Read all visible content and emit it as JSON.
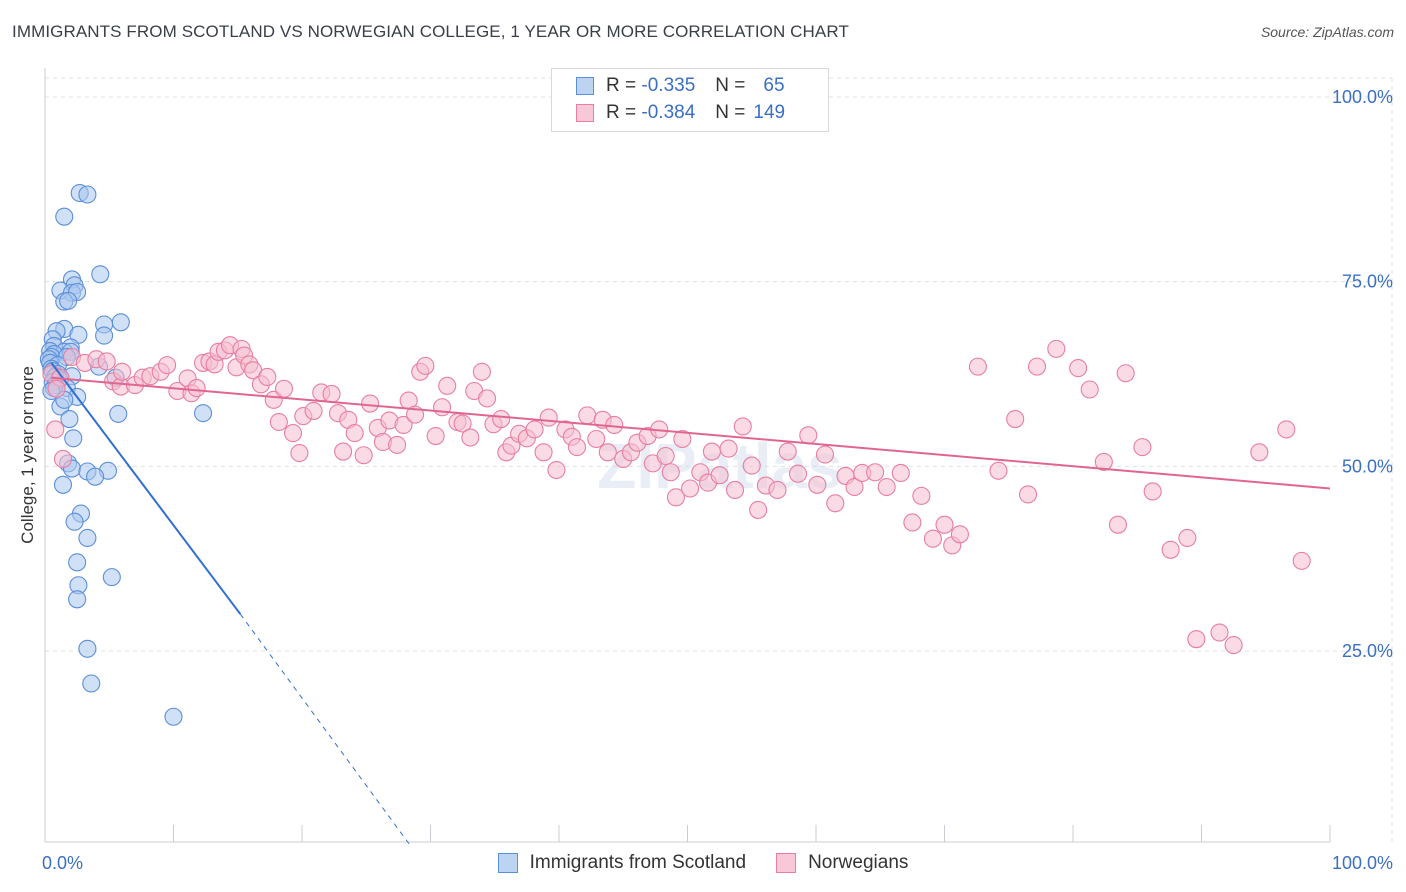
{
  "header": {
    "title": "IMMIGRANTS FROM SCOTLAND VS NORWEGIAN COLLEGE, 1 YEAR OR MORE CORRELATION CHART",
    "source": "Source: ZipAtlas.com"
  },
  "watermark": "ZIPatlas",
  "colors": {
    "blue": "#5b8fd9",
    "blue_fill": "#a9c6ee",
    "blue_line": "#2f6fd0",
    "pink": "#e87ea1",
    "pink_fill": "#f6bed0",
    "pink_line": "#e06690",
    "tick_text": "#3a6fc4",
    "grid": "#dde0e6"
  },
  "legend": {
    "r_label": "R =",
    "n_label": "N =",
    "series1": {
      "r": "-0.335",
      "n": "65"
    },
    "series2": {
      "r": "-0.384",
      "n": "149"
    }
  },
  "chart_data": {
    "type": "scatter",
    "title": "IMMIGRANTS FROM SCOTLAND VS NORWEGIAN COLLEGE, 1 YEAR OR MORE CORRELATION CHART",
    "xlabel": "",
    "ylabel": "College, 1 year or more",
    "xlim": [
      0,
      100
    ],
    "ylim": [
      0,
      105
    ],
    "x_tick_labels": [
      "0.0%",
      "100.0%"
    ],
    "y_tick_labels": [
      "25.0%",
      "50.0%",
      "75.0%",
      "100.0%"
    ],
    "y_ticks": [
      25,
      50,
      75,
      100
    ],
    "series": [
      {
        "name": "Immigrants from Scotland",
        "color": "#5b8fd9",
        "trend": {
          "x0": 0.5,
          "y0": 64,
          "x1": 15.2,
          "y1": 30.0,
          "dash_to_x": 28.5,
          "dash_to_y": -1.5
        },
        "points": [
          [
            2.7,
            87.0
          ],
          [
            3.3,
            86.8
          ],
          [
            1.5,
            83.8
          ],
          [
            4.3,
            76.0
          ],
          [
            2.1,
            75.3
          ],
          [
            2.3,
            74.5
          ],
          [
            1.2,
            73.8
          ],
          [
            2.1,
            73.5
          ],
          [
            2.5,
            73.6
          ],
          [
            1.5,
            72.3
          ],
          [
            1.8,
            72.4
          ],
          [
            5.9,
            69.5
          ],
          [
            4.6,
            69.2
          ],
          [
            1.5,
            68.6
          ],
          [
            0.9,
            68.3
          ],
          [
            2.6,
            67.8
          ],
          [
            4.6,
            67.7
          ],
          [
            0.6,
            67.2
          ],
          [
            0.7,
            66.3
          ],
          [
            2.0,
            66.1
          ],
          [
            0.4,
            65.6
          ],
          [
            1.5,
            65.5
          ],
          [
            2.0,
            65.5
          ],
          [
            0.7,
            65.2
          ],
          [
            0.5,
            64.8
          ],
          [
            0.3,
            64.5
          ],
          [
            1.7,
            64.8
          ],
          [
            0.4,
            64.0
          ],
          [
            1.0,
            63.7
          ],
          [
            4.2,
            63.5
          ],
          [
            0.5,
            63.2
          ],
          [
            0.6,
            62.9
          ],
          [
            1.0,
            62.5
          ],
          [
            0.8,
            62.1
          ],
          [
            2.1,
            62.2
          ],
          [
            5.5,
            62.0
          ],
          [
            1.1,
            61.8
          ],
          [
            0.6,
            61.4
          ],
          [
            0.8,
            61.0
          ],
          [
            1.7,
            60.6
          ],
          [
            0.7,
            60.6
          ],
          [
            0.5,
            60.2
          ],
          [
            2.5,
            59.4
          ],
          [
            1.2,
            58.1
          ],
          [
            5.7,
            57.1
          ],
          [
            12.3,
            57.2
          ],
          [
            1.9,
            56.4
          ],
          [
            2.2,
            53.8
          ],
          [
            1.8,
            50.4
          ],
          [
            2.1,
            49.7
          ],
          [
            3.3,
            49.3
          ],
          [
            4.9,
            49.4
          ],
          [
            3.9,
            48.6
          ],
          [
            1.4,
            47.5
          ],
          [
            2.8,
            43.6
          ],
          [
            2.3,
            42.5
          ],
          [
            3.3,
            40.3
          ],
          [
            2.5,
            37.0
          ],
          [
            5.2,
            35.0
          ],
          [
            2.6,
            33.9
          ],
          [
            2.5,
            32.0
          ],
          [
            3.3,
            25.3
          ],
          [
            3.6,
            20.6
          ],
          [
            10.0,
            16.1
          ],
          [
            1.5,
            59.0
          ]
        ]
      },
      {
        "name": "Norwegians",
        "color": "#e87ea1",
        "trend": {
          "x0": 0.5,
          "y0": 62.0,
          "x1": 100,
          "y1": 47.0
        },
        "points": [
          [
            0.8,
            55.0
          ],
          [
            1.4,
            51.0
          ],
          [
            0.5,
            62.5
          ],
          [
            1.2,
            62.0
          ],
          [
            0.9,
            60.5
          ],
          [
            2.1,
            64.8
          ],
          [
            3.1,
            64.0
          ],
          [
            4.0,
            64.5
          ],
          [
            4.8,
            64.2
          ],
          [
            5.3,
            61.5
          ],
          [
            5.9,
            60.8
          ],
          [
            6.0,
            62.8
          ],
          [
            7.0,
            61.0
          ],
          [
            7.6,
            62.0
          ],
          [
            8.2,
            62.2
          ],
          [
            9.0,
            62.8
          ],
          [
            9.5,
            63.7
          ],
          [
            10.3,
            60.2
          ],
          [
            11.1,
            61.9
          ],
          [
            11.4,
            59.9
          ],
          [
            11.8,
            60.6
          ],
          [
            12.3,
            64.0
          ],
          [
            12.8,
            64.2
          ],
          [
            13.2,
            63.8
          ],
          [
            13.5,
            65.5
          ],
          [
            14.0,
            65.7
          ],
          [
            14.4,
            66.4
          ],
          [
            14.9,
            63.4
          ],
          [
            15.3,
            65.9
          ],
          [
            15.5,
            65.0
          ],
          [
            15.9,
            63.8
          ],
          [
            16.2,
            63.0
          ],
          [
            16.8,
            61.1
          ],
          [
            17.3,
            62.1
          ],
          [
            17.8,
            59.0
          ],
          [
            18.2,
            56.0
          ],
          [
            18.6,
            60.5
          ],
          [
            19.3,
            54.5
          ],
          [
            19.8,
            51.8
          ],
          [
            20.1,
            56.8
          ],
          [
            20.9,
            57.5
          ],
          [
            21.5,
            60.0
          ],
          [
            22.3,
            59.8
          ],
          [
            22.8,
            57.2
          ],
          [
            23.2,
            52.0
          ],
          [
            23.6,
            56.3
          ],
          [
            24.1,
            54.5
          ],
          [
            24.8,
            51.5
          ],
          [
            25.3,
            58.5
          ],
          [
            25.9,
            55.2
          ],
          [
            26.3,
            53.3
          ],
          [
            26.8,
            56.2
          ],
          [
            27.4,
            52.9
          ],
          [
            27.9,
            55.6
          ],
          [
            28.3,
            58.9
          ],
          [
            28.8,
            57.0
          ],
          [
            29.2,
            62.8
          ],
          [
            29.6,
            63.6
          ],
          [
            30.4,
            54.1
          ],
          [
            30.9,
            58.0
          ],
          [
            31.3,
            60.9
          ],
          [
            32.1,
            56.0
          ],
          [
            32.5,
            55.8
          ],
          [
            33.1,
            53.9
          ],
          [
            33.4,
            60.2
          ],
          [
            34.0,
            62.8
          ],
          [
            34.4,
            59.2
          ],
          [
            34.9,
            55.7
          ],
          [
            35.5,
            56.4
          ],
          [
            35.9,
            51.9
          ],
          [
            36.3,
            52.8
          ],
          [
            36.9,
            54.4
          ],
          [
            37.5,
            53.8
          ],
          [
            38.1,
            55.0
          ],
          [
            38.8,
            51.9
          ],
          [
            39.2,
            56.6
          ],
          [
            39.8,
            49.5
          ],
          [
            40.5,
            55.0
          ],
          [
            41.0,
            54.0
          ],
          [
            41.4,
            52.6
          ],
          [
            42.2,
            56.9
          ],
          [
            42.9,
            53.7
          ],
          [
            43.4,
            56.3
          ],
          [
            43.8,
            51.9
          ],
          [
            44.3,
            55.6
          ],
          [
            45.0,
            51.0
          ],
          [
            45.6,
            51.9
          ],
          [
            46.1,
            53.2
          ],
          [
            46.9,
            54.1
          ],
          [
            47.3,
            50.4
          ],
          [
            47.8,
            55.0
          ],
          [
            48.3,
            51.4
          ],
          [
            48.7,
            49.2
          ],
          [
            49.1,
            45.8
          ],
          [
            49.6,
            53.7
          ],
          [
            50.2,
            47.0
          ],
          [
            51.0,
            49.2
          ],
          [
            51.6,
            47.8
          ],
          [
            51.9,
            52.0
          ],
          [
            52.5,
            48.8
          ],
          [
            53.2,
            52.4
          ],
          [
            53.7,
            46.8
          ],
          [
            54.3,
            55.4
          ],
          [
            55.0,
            50.1
          ],
          [
            55.5,
            44.1
          ],
          [
            56.1,
            47.4
          ],
          [
            57.0,
            46.8
          ],
          [
            57.8,
            52.0
          ],
          [
            58.6,
            49.0
          ],
          [
            59.4,
            54.2
          ],
          [
            60.1,
            47.5
          ],
          [
            60.7,
            51.6
          ],
          [
            61.5,
            45.0
          ],
          [
            62.3,
            48.7
          ],
          [
            63.0,
            47.2
          ],
          [
            63.6,
            49.1
          ],
          [
            64.6,
            49.2
          ],
          [
            65.5,
            47.2
          ],
          [
            66.6,
            49.1
          ],
          [
            67.5,
            42.4
          ],
          [
            68.2,
            46.0
          ],
          [
            69.1,
            40.2
          ],
          [
            70.0,
            42.1
          ],
          [
            70.6,
            39.3
          ],
          [
            71.2,
            40.8
          ],
          [
            72.6,
            63.5
          ],
          [
            74.2,
            49.4
          ],
          [
            75.5,
            56.4
          ],
          [
            76.5,
            46.2
          ],
          [
            77.2,
            63.5
          ],
          [
            78.7,
            65.9
          ],
          [
            80.4,
            63.3
          ],
          [
            81.3,
            60.4
          ],
          [
            82.4,
            50.6
          ],
          [
            83.5,
            42.1
          ],
          [
            84.1,
            62.6
          ],
          [
            85.4,
            52.6
          ],
          [
            86.2,
            46.6
          ],
          [
            87.6,
            38.7
          ],
          [
            88.9,
            40.3
          ],
          [
            89.6,
            26.6
          ],
          [
            91.4,
            27.5
          ],
          [
            92.5,
            25.8
          ],
          [
            94.5,
            51.9
          ],
          [
            96.6,
            55.0
          ],
          [
            97.8,
            37.2
          ]
        ]
      }
    ]
  },
  "bottom_legend": [
    {
      "label": "Immigrants from Scotland"
    },
    {
      "label": "Norwegians"
    }
  ]
}
